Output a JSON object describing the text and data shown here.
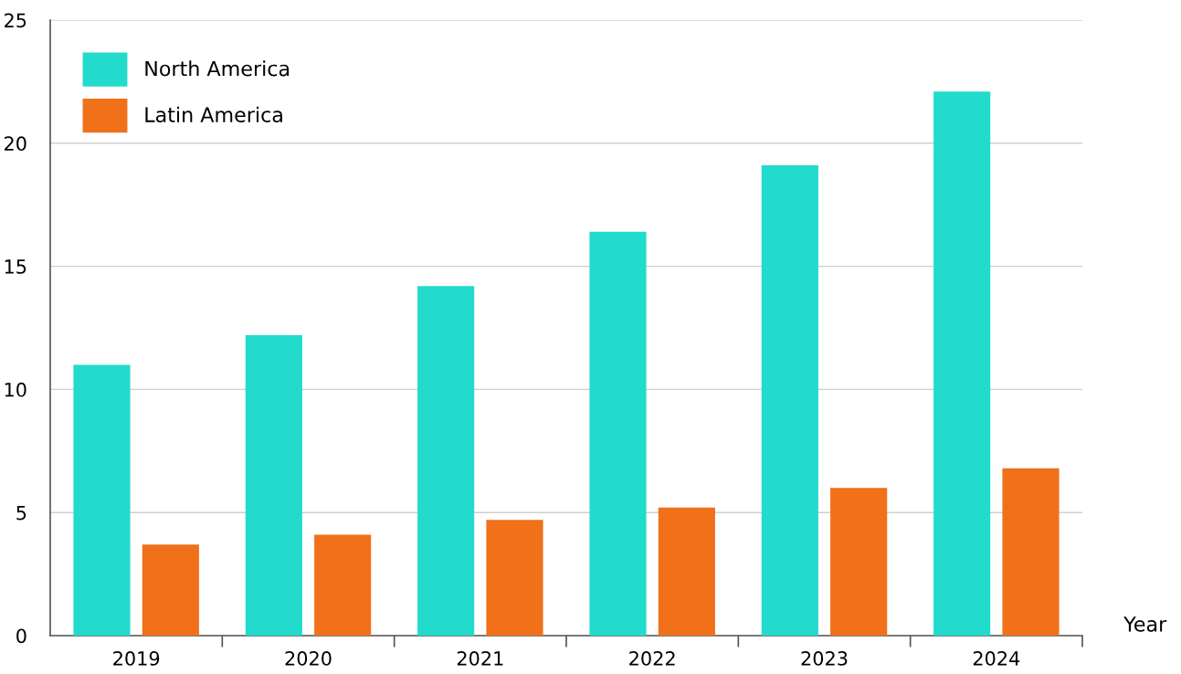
{
  "chart_data": {
    "type": "bar",
    "xlabel": "Year",
    "categories": [
      "2019",
      "2020",
      "2021",
      "2022",
      "2023",
      "2024"
    ],
    "series": [
      {
        "name": "North America",
        "color": "#22dbcc",
        "values": [
          11.0,
          12.2,
          14.2,
          16.4,
          19.1,
          22.1
        ]
      },
      {
        "name": "Latin America",
        "color": "#f0711a",
        "values": [
          3.7,
          4.1,
          4.7,
          5.2,
          6.0,
          6.8
        ]
      }
    ],
    "ylim": [
      0,
      25
    ],
    "yticks": [
      0,
      5,
      10,
      15,
      20,
      25
    ],
    "grid": "y",
    "legend": "top left"
  }
}
